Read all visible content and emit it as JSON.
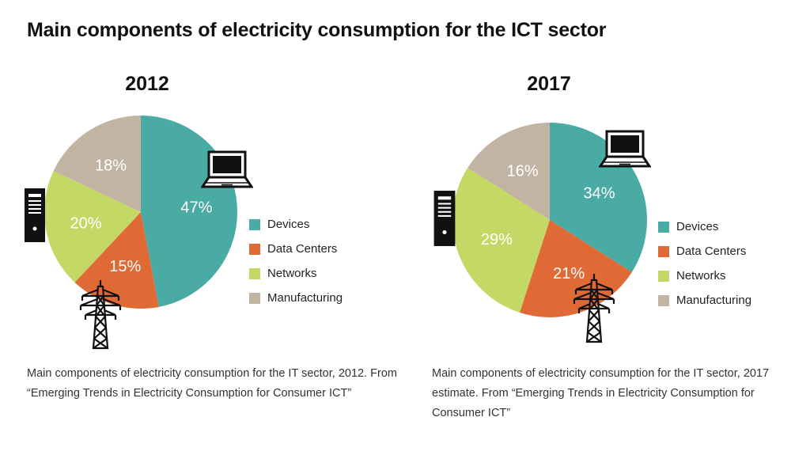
{
  "title": "Main components of electricity consumption for the ICT sector",
  "colors": {
    "devices": "#4aaba5",
    "data_centers": "#e06a35",
    "networks": "#c4d866",
    "manufacturing": "#c2b4a2"
  },
  "icons": [
    "laptop-icon",
    "server-icon",
    "power-tower-icon"
  ],
  "chart_data": [
    {
      "type": "pie",
      "title": "2012",
      "categories": [
        "Devices",
        "Data Centers",
        "Networks",
        "Manufacturing"
      ],
      "values": [
        47,
        15,
        20,
        18
      ],
      "labels": [
        "47%",
        "15%",
        "20%",
        "18%"
      ],
      "legend": [
        "Devices",
        "Data Centers",
        "Networks",
        "Manufacturing"
      ],
      "legend_position": "right",
      "caption": "Main components of electricity consumption for the IT sector, 2012. From “Emerging Trends in Electricity Consumption for Consumer ICT”"
    },
    {
      "type": "pie",
      "title": "2017",
      "categories": [
        "Devices",
        "Data Centers",
        "Networks",
        "Manufacturing"
      ],
      "values": [
        34,
        21,
        29,
        16
      ],
      "labels": [
        "34%",
        "21%",
        "29%",
        "16%"
      ],
      "legend": [
        "Devices",
        "Data Centers",
        "Networks",
        "Manufacturing"
      ],
      "legend_position": "right",
      "caption": "Main components of electricity consumption for the IT sector, 2017 estimate. From “Emerging Trends in Electricity Consumption for Consumer ICT”"
    }
  ]
}
